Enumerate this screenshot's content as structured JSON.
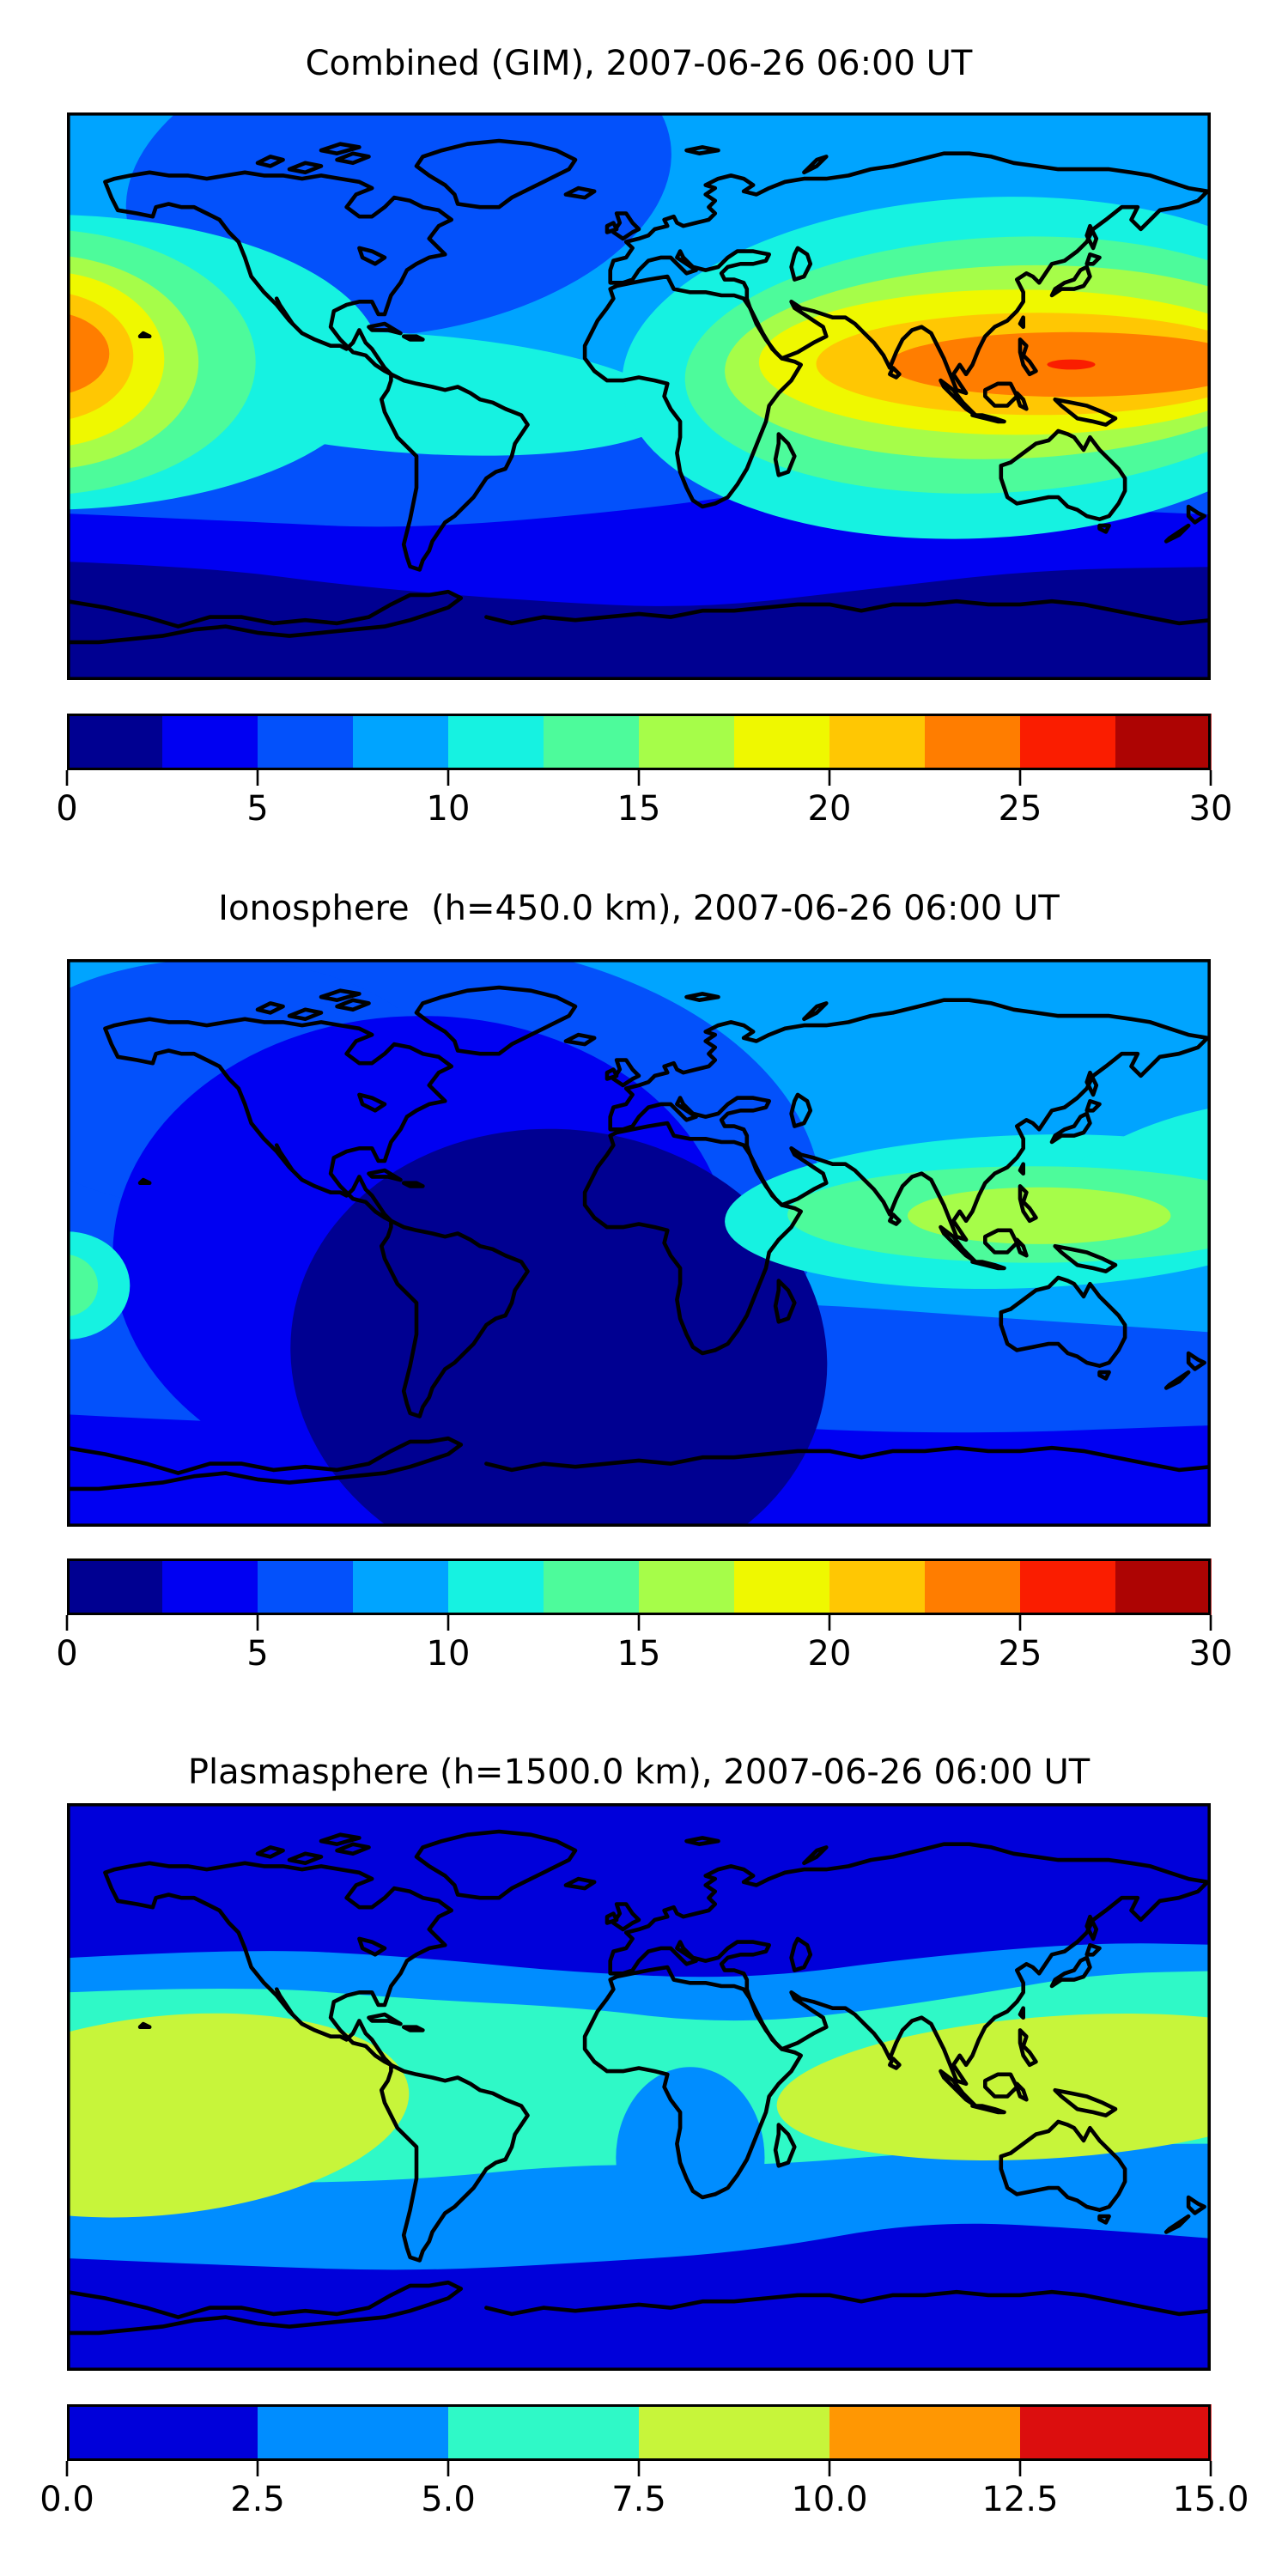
{
  "page": {
    "background": "#ffffff"
  },
  "chart_data": [
    {
      "type": "heatmap",
      "subtype": "filled-contour-world-map",
      "projection": "equirectangular",
      "title": "Combined (GIM), 2007-06-26 06:00 UT",
      "colorbar": {
        "orientation": "horizontal",
        "vmin": 0,
        "vmax": 30,
        "levels_step": 2.5,
        "n_segments": 12,
        "ticks": [
          "0",
          "5",
          "10",
          "15",
          "20",
          "25",
          "30"
        ],
        "segment_colors": [
          "#000091",
          "#0000F2",
          "#0351FB",
          "#00A4FF",
          "#16F2E1",
          "#4DFB9B",
          "#A6FD49",
          "#EFF800",
          "#FFC703",
          "#FF7D00",
          "#FA1D00",
          "#AD0403"
        ]
      },
      "field": {
        "base": 3,
        "regions": [
          {
            "kind": "blob",
            "color": 2,
            "cx": 0.29,
            "cy": 0.12,
            "rx": 0.24,
            "ry": 0.27,
            "rot": -8
          },
          {
            "kind": "band",
            "color": 2,
            "top": [
              [
                -0.02,
                0.565
              ],
              [
                0.2,
                0.585
              ],
              [
                0.4,
                0.57
              ],
              [
                0.6,
                0.55
              ],
              [
                0.75,
                0.545
              ],
              [
                0.9,
                0.565
              ],
              [
                1.02,
                0.575
              ]
            ]
          },
          {
            "kind": "band",
            "color": 1,
            "top": [
              [
                -0.02,
                0.705
              ],
              [
                0.15,
                0.72
              ],
              [
                0.3,
                0.735
              ],
              [
                0.5,
                0.7
              ],
              [
                0.62,
                0.665
              ],
              [
                0.75,
                0.67
              ],
              [
                0.9,
                0.7
              ],
              [
                1.02,
                0.71
              ]
            ]
          },
          {
            "kind": "band",
            "color": 0,
            "top": [
              [
                -0.02,
                0.79
              ],
              [
                0.12,
                0.8
              ],
              [
                0.25,
                0.835
              ],
              [
                0.4,
                0.86
              ],
              [
                0.55,
                0.875
              ],
              [
                0.7,
                0.84
              ],
              [
                0.85,
                0.805
              ],
              [
                1.02,
                0.8
              ]
            ]
          },
          {
            "kind": "blob",
            "color": 4,
            "cx": -0.02,
            "cy": 0.44,
            "rx": 0.295,
            "ry": 0.26
          },
          {
            "kind": "blob",
            "color": 4,
            "cx": 0.3,
            "cy": 0.495,
            "rx": 0.23,
            "ry": 0.105,
            "rot": 4
          },
          {
            "kind": "blob",
            "color": 4,
            "cx": 0.8,
            "cy": 0.45,
            "rx": 0.315,
            "ry": 0.3,
            "rot": -3
          },
          {
            "kind": "blob",
            "color": 5,
            "cx": -0.03,
            "cy": 0.44,
            "rx": 0.195,
            "ry": 0.235
          },
          {
            "kind": "blob",
            "color": 5,
            "cx": 0.815,
            "cy": 0.445,
            "rx": 0.275,
            "ry": 0.225,
            "rot": -3
          },
          {
            "kind": "blob",
            "color": 6,
            "cx": -0.025,
            "cy": 0.44,
            "rx": 0.14,
            "ry": 0.19
          },
          {
            "kind": "blob",
            "color": 6,
            "cx": 0.825,
            "cy": 0.44,
            "rx": 0.25,
            "ry": 0.17,
            "rot": -2
          },
          {
            "kind": "blob",
            "color": 7,
            "cx": -0.02,
            "cy": 0.435,
            "rx": 0.105,
            "ry": 0.155
          },
          {
            "kind": "blob",
            "color": 7,
            "cx": 0.83,
            "cy": 0.44,
            "rx": 0.225,
            "ry": 0.128
          },
          {
            "kind": "blob",
            "color": 8,
            "cx": -0.02,
            "cy": 0.43,
            "rx": 0.078,
            "ry": 0.115
          },
          {
            "kind": "blob",
            "color": 8,
            "cx": 0.85,
            "cy": 0.443,
            "rx": 0.195,
            "ry": 0.09
          },
          {
            "kind": "blob",
            "color": 9,
            "cx": -0.02,
            "cy": 0.425,
            "rx": 0.057,
            "ry": 0.075
          },
          {
            "kind": "blob",
            "color": 9,
            "cx": 0.878,
            "cy": 0.444,
            "rx": 0.16,
            "ry": 0.057
          },
          {
            "kind": "blob",
            "color": 10,
            "cx": 0.878,
            "cy": 0.444,
            "rx": 0.021,
            "ry": 0.009
          }
        ]
      }
    },
    {
      "type": "heatmap",
      "subtype": "filled-contour-world-map",
      "projection": "equirectangular",
      "title": "Ionosphere  (h=450.0 km), 2007-06-26 06:00 UT",
      "colorbar": {
        "orientation": "horizontal",
        "vmin": 0,
        "vmax": 30,
        "levels_step": 2.5,
        "n_segments": 12,
        "ticks": [
          "0",
          "5",
          "10",
          "15",
          "20",
          "25",
          "30"
        ],
        "segment_colors": [
          "#000091",
          "#0000F2",
          "#0351FB",
          "#00A4FF",
          "#16F2E1",
          "#4DFB9B",
          "#A6FD49",
          "#EFF800",
          "#FFC703",
          "#FF7D00",
          "#FA1D00",
          "#AD0403"
        ]
      },
      "field": {
        "base": 3,
        "regions": [
          {
            "kind": "blob",
            "color": 2,
            "cx": 0.28,
            "cy": 0.43,
            "rx": 0.38,
            "ry": 0.47
          },
          {
            "kind": "blob",
            "color": 2,
            "cx": 0.13,
            "cy": 0.22,
            "rx": 0.2,
            "ry": 0.22
          },
          {
            "kind": "band",
            "color": 2,
            "top": [
              [
                -0.02,
                0.62
              ],
              [
                0.2,
                0.66
              ],
              [
                0.4,
                0.64
              ],
              [
                0.6,
                0.6
              ],
              [
                0.8,
                0.63
              ],
              [
                1.02,
                0.66
              ]
            ]
          },
          {
            "kind": "blob",
            "color": 1,
            "cx": 0.31,
            "cy": 0.52,
            "rx": 0.27,
            "ry": 0.42
          },
          {
            "kind": "band",
            "color": 1,
            "top": [
              [
                -0.02,
                0.8
              ],
              [
                0.25,
                0.83
              ],
              [
                0.5,
                0.81
              ],
              [
                0.75,
                0.84
              ],
              [
                1.02,
                0.82
              ]
            ]
          },
          {
            "kind": "blob",
            "color": 0,
            "cx": 0.43,
            "cy": 0.7,
            "rx": 0.235,
            "ry": 0.4,
            "rot": 6
          },
          {
            "kind": "blob",
            "color": 4,
            "cx": 0.835,
            "cy": 0.445,
            "rx": 0.26,
            "ry": 0.135,
            "rot": -2
          },
          {
            "kind": "blob",
            "color": 4,
            "cx": 0.96,
            "cy": 0.345,
            "rx": 0.1,
            "ry": 0.058,
            "rot": -20
          },
          {
            "kind": "blob",
            "color": 4,
            "cx": 0.0,
            "cy": 0.575,
            "rx": 0.055,
            "ry": 0.095
          },
          {
            "kind": "blob",
            "color": 5,
            "cx": 0.845,
            "cy": 0.45,
            "rx": 0.215,
            "ry": 0.085
          },
          {
            "kind": "blob",
            "color": 5,
            "cx": -0.003,
            "cy": 0.575,
            "rx": 0.03,
            "ry": 0.055
          },
          {
            "kind": "blob",
            "color": 6,
            "cx": 0.85,
            "cy": 0.452,
            "rx": 0.115,
            "ry": 0.05
          }
        ]
      }
    },
    {
      "type": "heatmap",
      "subtype": "filled-contour-world-map",
      "projection": "equirectangular",
      "title": "Plasmasphere (h=1500.0 km), 2007-06-26 06:00 UT",
      "colorbar": {
        "orientation": "horizontal",
        "vmin": 0,
        "vmax": 15,
        "levels_step": 2.5,
        "n_segments": 6,
        "ticks": [
          "0.0",
          "2.5",
          "5.0",
          "7.5",
          "10.0",
          "12.5",
          "15.0"
        ],
        "segment_colors": [
          "#0000DA",
          "#008DFF",
          "#2FF9C7",
          "#C7F53A",
          "#FF9703",
          "#DC0E0E"
        ]
      },
      "field": {
        "base": 0,
        "regions": [
          {
            "kind": "band",
            "color": 1,
            "top": [
              [
                -0.02,
                0.275
              ],
              [
                0.15,
                0.255
              ],
              [
                0.3,
                0.27
              ],
              [
                0.45,
                0.3
              ],
              [
                0.6,
                0.31
              ],
              [
                0.75,
                0.27
              ],
              [
                0.9,
                0.245
              ],
              [
                1.02,
                0.25
              ]
            ],
            "bottom": [
              [
                -0.02,
                0.8
              ],
              [
                0.15,
                0.815
              ],
              [
                0.3,
                0.825
              ],
              [
                0.45,
                0.81
              ],
              [
                0.6,
                0.79
              ],
              [
                0.75,
                0.735
              ],
              [
                0.9,
                0.75
              ],
              [
                1.02,
                0.77
              ]
            ]
          },
          {
            "kind": "band",
            "color": 2,
            "top": [
              [
                -0.02,
                0.335
              ],
              [
                0.15,
                0.32
              ],
              [
                0.3,
                0.345
              ],
              [
                0.45,
                0.36
              ],
              [
                0.55,
                0.385
              ],
              [
                0.65,
                0.38
              ],
              [
                0.8,
                0.335
              ],
              [
                0.9,
                0.3
              ],
              [
                1.02,
                0.295
              ]
            ],
            "bottom": [
              [
                -0.02,
                0.655
              ],
              [
                0.15,
                0.67
              ],
              [
                0.3,
                0.665
              ],
              [
                0.45,
                0.635
              ],
              [
                0.6,
                0.64
              ],
              [
                0.75,
                0.615
              ],
              [
                0.9,
                0.6
              ],
              [
                1.02,
                0.6
              ]
            ]
          },
          {
            "kind": "blob",
            "color": 1,
            "cx": 0.545,
            "cy": 0.625,
            "rx": 0.065,
            "ry": 0.16
          },
          {
            "kind": "blob",
            "color": 3,
            "cx": 0.085,
            "cy": 0.55,
            "rx": 0.215,
            "ry": 0.175,
            "rot": -6
          },
          {
            "kind": "blob",
            "color": 3,
            "cx": 0.865,
            "cy": 0.5,
            "rx": 0.245,
            "ry": 0.125,
            "rot": -4
          }
        ]
      }
    }
  ]
}
